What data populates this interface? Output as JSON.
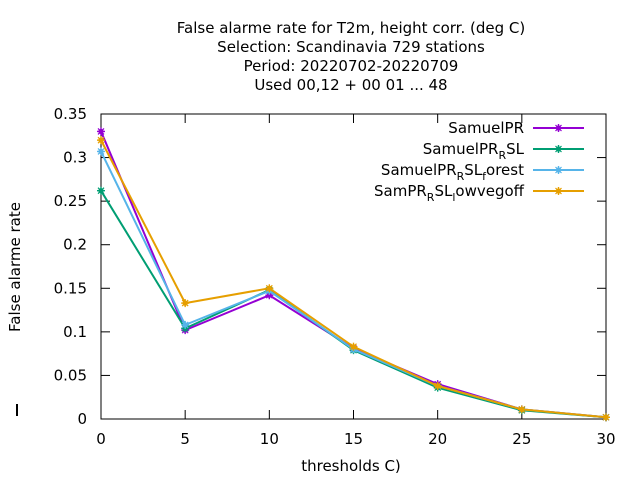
{
  "chart_data": {
    "type": "line",
    "title_lines": [
      "False alarme rate  for T2m, height corr. (deg C)",
      "Selection: Scandinavia    729 stations",
      "Period: 20220702-20220709",
      "Used  00,12  + 00 01 ... 48"
    ],
    "xlabel": "thresholds C)",
    "ylabel": "False alarme rate",
    "xlim": [
      0,
      30
    ],
    "ylim": [
      0,
      0.35
    ],
    "x_ticks": [
      0,
      5,
      10,
      15,
      20,
      25,
      30
    ],
    "y_ticks": [
      0,
      0.05,
      0.1,
      0.15,
      0.2,
      0.25,
      0.3,
      0.35
    ],
    "x_tick_labels": [
      "0",
      "5",
      "10",
      "15",
      "20",
      "25",
      "30"
    ],
    "y_tick_labels": [
      "0",
      "0.05",
      "0.1",
      "0.15",
      "0.2",
      "0.25",
      "0.3",
      "0.35"
    ],
    "legend_position": "top-right",
    "grid": false,
    "x": [
      0,
      5,
      10,
      15,
      20,
      25,
      30
    ],
    "series": [
      {
        "legend": [
          "SamuelPR",
          "",
          ""
        ],
        "color": "#9400d3",
        "values": [
          0.33,
          0.102,
          0.142,
          0.081,
          0.04,
          0.011,
          0.002
        ]
      },
      {
        "legend": [
          "SamuelPR",
          "R",
          "SL"
        ],
        "color": "#009e73",
        "values": [
          0.262,
          0.104,
          0.148,
          0.079,
          0.036,
          0.01,
          0.002
        ]
      },
      {
        "legend": [
          "SamuelPR",
          "R",
          "SL",
          "f",
          "orest"
        ],
        "color": "#56b4e9",
        "values": [
          0.307,
          0.108,
          0.147,
          0.08,
          0.038,
          0.011,
          0.002
        ]
      },
      {
        "legend": [
          "SamPR",
          "R",
          "SL",
          "l",
          "owvegoff"
        ],
        "color": "#e69f00",
        "values": [
          0.32,
          0.133,
          0.15,
          0.083,
          0.038,
          0.011,
          0.002
        ]
      }
    ]
  }
}
